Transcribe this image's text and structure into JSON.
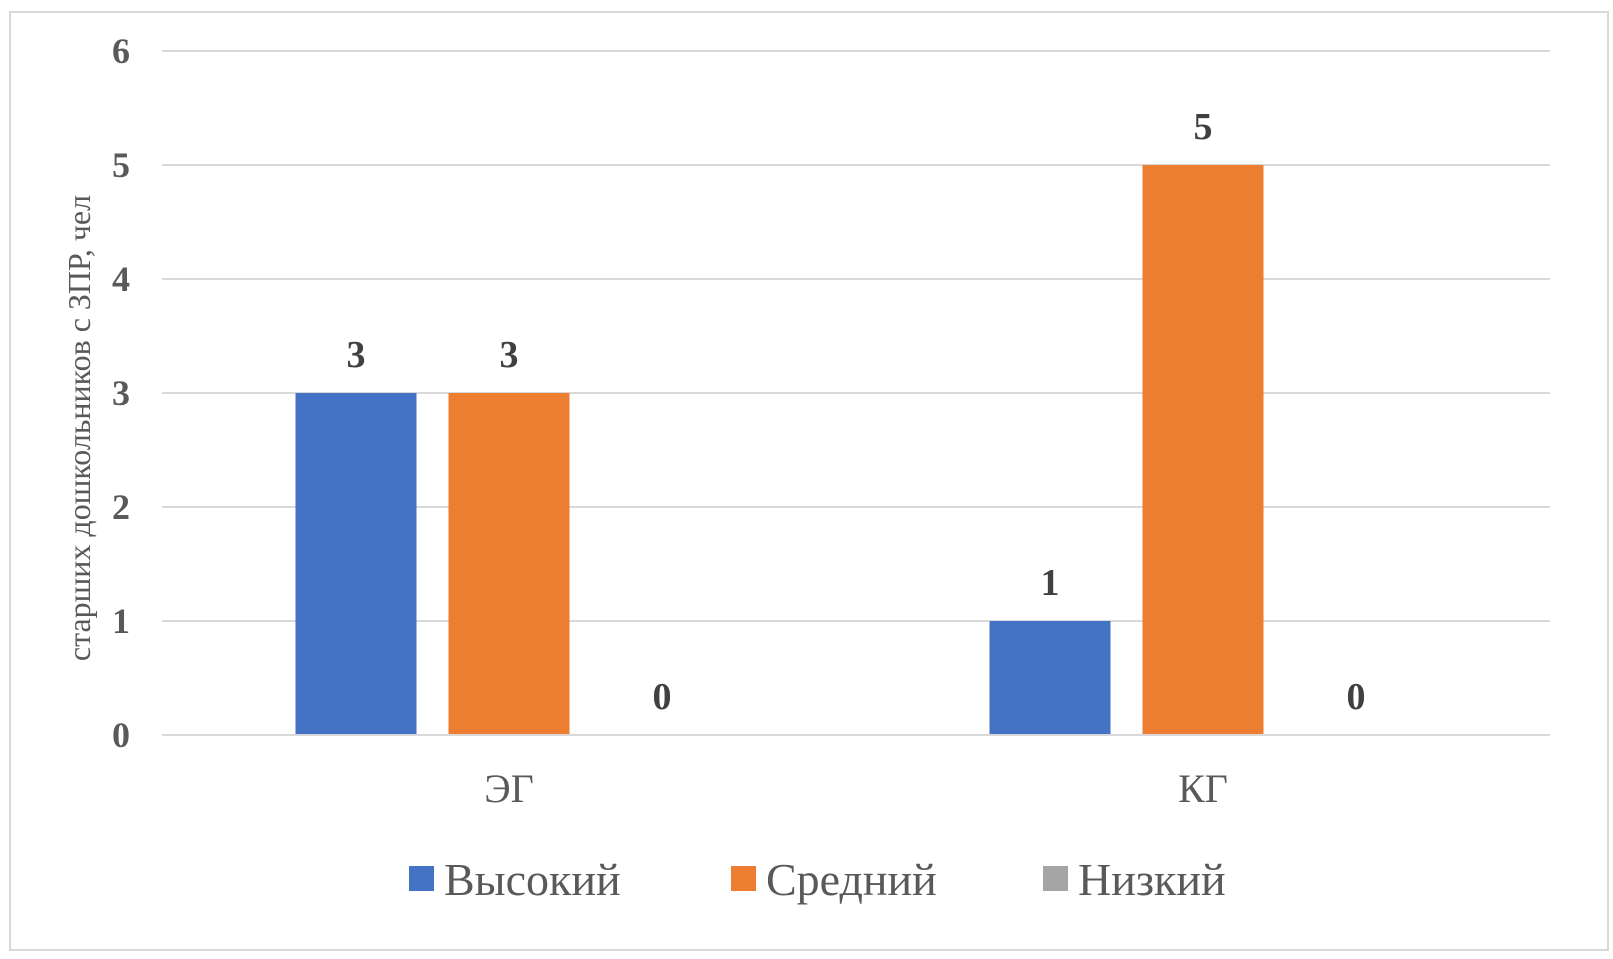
{
  "chart_data": {
    "type": "bar",
    "categories": [
      "ЭГ",
      "КГ"
    ],
    "series": [
      {
        "name": "Высокий",
        "values": [
          3,
          1
        ],
        "color": "#4472C4"
      },
      {
        "name": "Средний",
        "values": [
          3,
          5
        ],
        "color": "#ED7D31"
      },
      {
        "name": "Низкий",
        "values": [
          0,
          0
        ],
        "color": "#A5A5A5"
      }
    ],
    "title": "",
    "xlabel": "",
    "ylabel": "старших дошкольников с ЗПР, чел",
    "ylim": [
      0,
      6
    ],
    "yticks": [
      0,
      1,
      2,
      3,
      4,
      5,
      6
    ],
    "grid": true,
    "data_labels": true,
    "legend_position": "bottom",
    "colors": {
      "grid": "#d9d9d9",
      "axis_text": "#595959",
      "data_label": "#404040"
    }
  }
}
